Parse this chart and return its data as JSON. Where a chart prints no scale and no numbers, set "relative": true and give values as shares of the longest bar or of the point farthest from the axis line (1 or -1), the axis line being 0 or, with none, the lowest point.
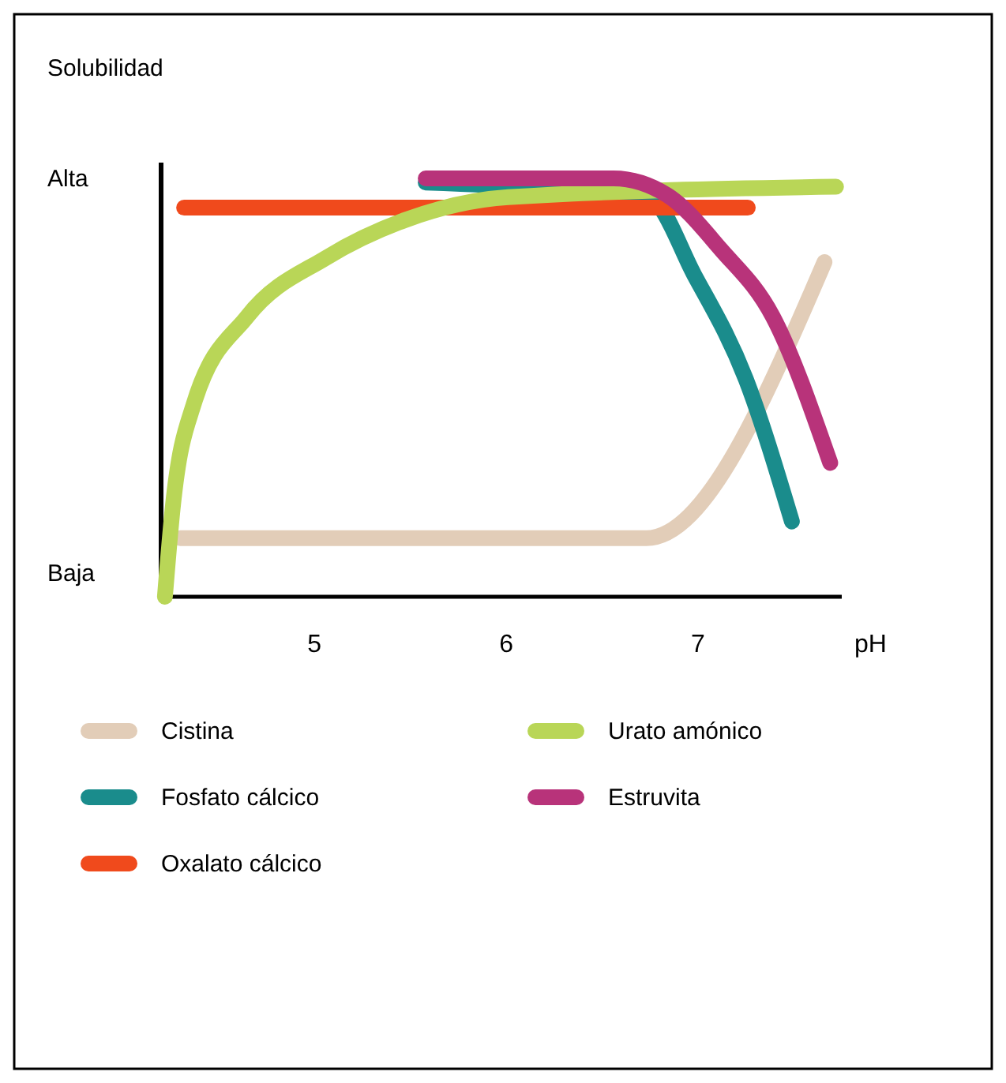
{
  "chart_data": {
    "type": "line",
    "relative": true,
    "ylabel": "Solubilidad",
    "xlabel": "pH",
    "xlim": [
      4.2,
      7.75
    ],
    "xticks": [
      5,
      6,
      7
    ],
    "annotations": [
      "Alta",
      "Baja"
    ],
    "legend": "bottom",
    "grid": false,
    "marker": "none",
    "line_style": "solid",
    "series": [
      {
        "name": "Cistina",
        "color": "#e2cdb8",
        "x": [
          4.3,
          6.73,
          7.66
        ],
        "values": [
          0.14,
          0.14,
          0.8
        ]
      },
      {
        "name": "Fosfato cálcico",
        "color": "#1a8c8c",
        "x": [
          5.58,
          6.75,
          6.98,
          7.25,
          7.49
        ],
        "values": [
          0.99,
          0.95,
          0.77,
          0.52,
          0.18
        ]
      },
      {
        "name": "Oxalato cálcico",
        "color": "#f04a1c",
        "x": [
          4.32,
          7.26
        ],
        "values": [
          0.93,
          0.93
        ]
      },
      {
        "name": "Urato amónico",
        "color": "#b9d657",
        "x": [
          4.22,
          4.26,
          4.37,
          4.65,
          5.06,
          5.47,
          6.01,
          7.72
        ],
        "values": [
          0,
          0.21,
          0.46,
          0.67,
          0.81,
          0.9,
          0.955,
          0.98
        ]
      },
      {
        "name": "Estruvita",
        "color": "#b8337a",
        "x": [
          5.58,
          6.56,
          6.84,
          7.12,
          7.39,
          7.69
        ],
        "values": [
          1,
          1,
          0.96,
          0.83,
          0.67,
          0.32
        ]
      }
    ]
  }
}
